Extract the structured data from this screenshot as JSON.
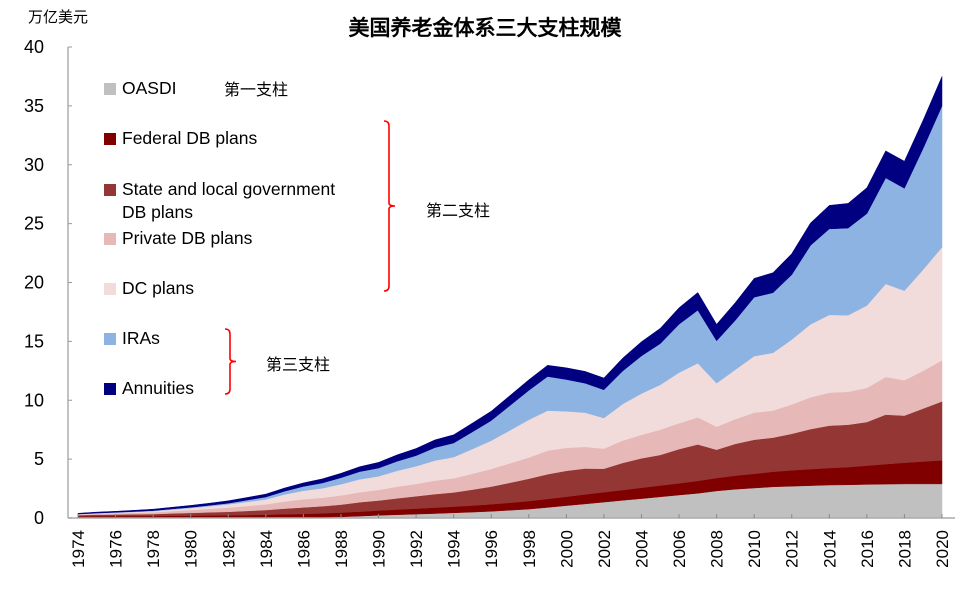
{
  "chart_data": {
    "type": "area",
    "stacked": true,
    "title": "美国养老金体系三大支柱规模",
    "ylabel": "万亿美元",
    "xlabel": "",
    "ylim": [
      0,
      40
    ],
    "yticks": [
      0,
      5,
      10,
      15,
      20,
      25,
      30,
      35,
      40
    ],
    "xlim": [
      1974,
      2020
    ],
    "xticks": [
      1974,
      1976,
      1978,
      1980,
      1982,
      1984,
      1986,
      1988,
      1990,
      1992,
      1994,
      1996,
      1998,
      2000,
      2002,
      2004,
      2006,
      2008,
      2010,
      2012,
      2014,
      2016,
      2018,
      2020
    ],
    "grid": false,
    "legend_position": "top-left",
    "x": [
      1974,
      1975,
      1976,
      1977,
      1978,
      1979,
      1980,
      1981,
      1982,
      1983,
      1984,
      1985,
      1986,
      1987,
      1988,
      1989,
      1990,
      1991,
      1992,
      1993,
      1994,
      1995,
      1996,
      1997,
      1998,
      1999,
      2000,
      2001,
      2002,
      2003,
      2004,
      2005,
      2006,
      2007,
      2008,
      2009,
      2010,
      2011,
      2012,
      2013,
      2014,
      2015,
      2016,
      2017,
      2018,
      2019,
      2020
    ],
    "series": [
      {
        "name": "OASDI",
        "color": "#c0c0c0",
        "values": [
          0.05,
          0.05,
          0.05,
          0.04,
          0.03,
          0.03,
          0.03,
          0.03,
          0.02,
          0.02,
          0.03,
          0.04,
          0.05,
          0.07,
          0.1,
          0.16,
          0.23,
          0.28,
          0.33,
          0.38,
          0.44,
          0.5,
          0.57,
          0.66,
          0.76,
          0.9,
          1.05,
          1.2,
          1.35,
          1.5,
          1.65,
          1.8,
          1.95,
          2.1,
          2.3,
          2.45,
          2.55,
          2.65,
          2.7,
          2.75,
          2.8,
          2.82,
          2.85,
          2.88,
          2.9,
          2.9,
          2.9
        ]
      },
      {
        "name": "Federal DB plans",
        "color": "#800000",
        "values": [
          0.1,
          0.11,
          0.12,
          0.13,
          0.14,
          0.16,
          0.17,
          0.19,
          0.21,
          0.23,
          0.25,
          0.28,
          0.3,
          0.33,
          0.36,
          0.38,
          0.41,
          0.44,
          0.47,
          0.5,
          0.53,
          0.56,
          0.6,
          0.64,
          0.68,
          0.72,
          0.76,
          0.8,
          0.84,
          0.88,
          0.92,
          0.96,
          1.0,
          1.05,
          1.1,
          1.15,
          1.2,
          1.28,
          1.35,
          1.4,
          1.45,
          1.5,
          1.6,
          1.7,
          1.8,
          1.9,
          2.0
        ]
      },
      {
        "name": "State and local government DB plans",
        "color": "#943634",
        "values": [
          0.1,
          0.12,
          0.13,
          0.15,
          0.17,
          0.2,
          0.23,
          0.26,
          0.3,
          0.35,
          0.4,
          0.48,
          0.55,
          0.6,
          0.68,
          0.8,
          0.85,
          0.95,
          1.05,
          1.15,
          1.2,
          1.35,
          1.5,
          1.7,
          1.9,
          2.1,
          2.2,
          2.2,
          2.0,
          2.3,
          2.5,
          2.6,
          2.9,
          3.1,
          2.4,
          2.7,
          2.9,
          2.9,
          3.1,
          3.4,
          3.6,
          3.6,
          3.7,
          4.2,
          4.0,
          4.5,
          5.0
        ]
      },
      {
        "name": "Private DB plans",
        "color": "#e6b9b8",
        "values": [
          0.05,
          0.08,
          0.1,
          0.12,
          0.15,
          0.2,
          0.25,
          0.3,
          0.35,
          0.42,
          0.48,
          0.6,
          0.7,
          0.72,
          0.78,
          0.85,
          0.9,
          1.0,
          1.05,
          1.15,
          1.2,
          1.35,
          1.5,
          1.65,
          1.8,
          2.0,
          1.95,
          1.85,
          1.7,
          1.9,
          2.0,
          2.15,
          2.2,
          2.3,
          1.95,
          2.1,
          2.3,
          2.3,
          2.5,
          2.7,
          2.8,
          2.8,
          2.9,
          3.2,
          3.0,
          3.2,
          3.5
        ]
      },
      {
        "name": "DC plans",
        "color": "#f2dcdb",
        "values": [
          0.03,
          0.05,
          0.06,
          0.08,
          0.1,
          0.13,
          0.17,
          0.22,
          0.28,
          0.35,
          0.42,
          0.6,
          0.72,
          0.8,
          0.95,
          1.1,
          1.15,
          1.35,
          1.5,
          1.7,
          1.8,
          2.1,
          2.4,
          2.8,
          3.2,
          3.4,
          3.1,
          2.9,
          2.6,
          3.1,
          3.5,
          3.8,
          4.3,
          4.6,
          3.7,
          4.2,
          4.8,
          4.9,
          5.5,
          6.2,
          6.6,
          6.5,
          7.0,
          7.9,
          7.6,
          8.6,
          9.6
        ]
      },
      {
        "name": "IRAs",
        "color": "#8db3e2",
        "values": [
          0.01,
          0.01,
          0.02,
          0.03,
          0.04,
          0.05,
          0.06,
          0.08,
          0.1,
          0.15,
          0.2,
          0.28,
          0.36,
          0.45,
          0.55,
          0.65,
          0.7,
          0.8,
          0.9,
          1.1,
          1.2,
          1.45,
          1.7,
          2.1,
          2.5,
          2.9,
          2.7,
          2.5,
          2.4,
          2.8,
          3.2,
          3.5,
          4.1,
          4.5,
          3.6,
          4.2,
          5.0,
          5.1,
          5.5,
          6.7,
          7.3,
          7.4,
          7.8,
          9.0,
          8.7,
          10.3,
          12.0
        ]
      },
      {
        "name": "Annuities",
        "color": "#000080",
        "values": [
          0.06,
          0.08,
          0.09,
          0.1,
          0.12,
          0.14,
          0.16,
          0.18,
          0.2,
          0.22,
          0.25,
          0.27,
          0.3,
          0.35,
          0.38,
          0.42,
          0.48,
          0.55,
          0.6,
          0.65,
          0.7,
          0.75,
          0.8,
          0.85,
          0.9,
          0.95,
          1.0,
          1.0,
          1.0,
          1.1,
          1.2,
          1.3,
          1.4,
          1.5,
          1.4,
          1.5,
          1.6,
          1.7,
          1.8,
          1.9,
          2.0,
          2.1,
          2.2,
          2.3,
          2.3,
          2.4,
          2.5
        ]
      }
    ],
    "annotations": [
      {
        "text": "第一支柱",
        "covers": [
          "OASDI"
        ]
      },
      {
        "text": "第二支柱",
        "covers": [
          "Federal DB plans",
          "State and local government DB plans",
          "Private DB plans",
          "DC plans"
        ]
      },
      {
        "text": "第三支柱",
        "covers": [
          "IRAs",
          "Annuities"
        ]
      }
    ]
  },
  "legend": {
    "oasdi": "OASDI",
    "federal": "Federal DB plans",
    "state_line1": "State and local government",
    "state_line2": "DB plans",
    "private": "Private DB plans",
    "dc": "DC plans",
    "iras": "IRAs",
    "annuities": "Annuities"
  },
  "pillars": {
    "first": "第一支柱",
    "second": "第二支柱",
    "third": "第三支柱"
  },
  "unit_label": "万亿美元",
  "bracket_color": "#ff0000"
}
